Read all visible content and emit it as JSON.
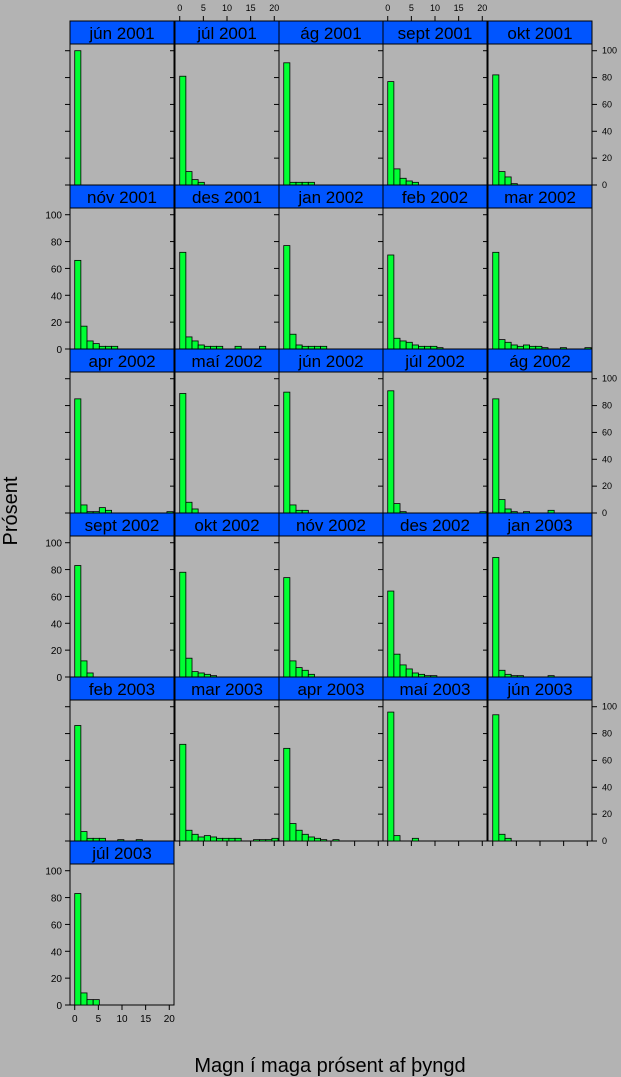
{
  "chart_data": {
    "type": "bar",
    "chart_kind": "trellis-histogram",
    "xlabel": "Magn í maga prósent af þyngd",
    "ylabel": "Prósent",
    "xlim": [
      -1,
      21
    ],
    "ylim": [
      0,
      105
    ],
    "x_ticks": [
      0,
      5,
      10,
      15,
      20
    ],
    "y_ticks": [
      0,
      20,
      40,
      60,
      80,
      100
    ],
    "bin_width": 1.3,
    "bin_starts": [
      0,
      1.3,
      2.6,
      3.9,
      5.2,
      6.5,
      7.8,
      9.1,
      10.4,
      11.7,
      13.0,
      14.3,
      15.6,
      16.9,
      18.2,
      19.5
    ],
    "colors": {
      "bar": "#00ff33",
      "strip": "#0055ff",
      "background": "#b3b3b3"
    },
    "panels": [
      {
        "label": "jún 2001",
        "values": [
          100,
          0,
          0,
          0,
          0,
          0,
          0,
          0,
          0,
          0,
          0,
          0,
          0,
          0,
          0,
          0
        ]
      },
      {
        "label": "júl 2001",
        "values": [
          81,
          10,
          4,
          2,
          0,
          0,
          0,
          0,
          0,
          0,
          0,
          0,
          0,
          0,
          0,
          0
        ]
      },
      {
        "label": "ág 2001",
        "values": [
          91,
          2,
          2,
          2,
          2,
          0,
          0,
          0,
          0,
          0,
          0,
          0,
          0,
          0,
          0,
          0
        ]
      },
      {
        "label": "sept 2001",
        "values": [
          77,
          12,
          5,
          3,
          2,
          0,
          0,
          0,
          0,
          0,
          0,
          0,
          0,
          0,
          0,
          0
        ]
      },
      {
        "label": "okt 2001",
        "values": [
          82,
          10,
          6,
          1,
          0,
          0,
          0,
          0,
          0,
          0,
          0,
          0,
          0,
          0,
          0,
          0
        ]
      },
      {
        "label": "nóv 2001",
        "values": [
          66,
          17,
          6,
          4,
          2,
          2,
          2,
          0,
          0,
          0,
          0,
          0,
          0,
          0,
          0,
          0
        ]
      },
      {
        "label": "des 2001",
        "values": [
          72,
          9,
          6,
          3,
          2,
          2,
          2,
          0,
          0,
          2,
          0,
          0,
          0,
          2,
          0,
          0
        ]
      },
      {
        "label": "jan 2002",
        "values": [
          77,
          11,
          3,
          2,
          2,
          2,
          2,
          0,
          0,
          0,
          0,
          0,
          0,
          0,
          0,
          0
        ]
      },
      {
        "label": "feb 2002",
        "values": [
          70,
          8,
          6,
          5,
          3,
          2,
          2,
          2,
          1,
          0,
          0,
          0,
          0,
          0,
          0,
          0
        ]
      },
      {
        "label": "mar 2002",
        "values": [
          72,
          7,
          5,
          3,
          2,
          3,
          2,
          2,
          1,
          0,
          0,
          1,
          0,
          0,
          0,
          1
        ]
      },
      {
        "label": "apr 2002",
        "values": [
          85,
          6,
          1,
          1,
          4,
          2,
          0,
          0,
          0,
          0,
          0,
          0,
          0,
          0,
          0,
          1
        ]
      },
      {
        "label": "maí 2002",
        "values": [
          89,
          8,
          3,
          0,
          0,
          0,
          0,
          0,
          0,
          0,
          0,
          0,
          0,
          0,
          0,
          0
        ]
      },
      {
        "label": "jún 2002",
        "values": [
          90,
          6,
          2,
          2,
          0,
          0,
          0,
          0,
          0,
          0,
          0,
          0,
          0,
          0,
          0,
          0
        ]
      },
      {
        "label": "júl 2002",
        "values": [
          91,
          7,
          1,
          0,
          0,
          0,
          0,
          0,
          0,
          0,
          0,
          0,
          0,
          0,
          0,
          1
        ]
      },
      {
        "label": "ág 2002",
        "values": [
          85,
          10,
          3,
          1,
          0,
          1,
          0,
          0,
          0,
          2,
          0,
          0,
          0,
          0,
          0,
          0
        ]
      },
      {
        "label": "sept 2002",
        "values": [
          83,
          12,
          3,
          0,
          0,
          0,
          0,
          0,
          0,
          0,
          0,
          0,
          0,
          0,
          0,
          0
        ]
      },
      {
        "label": "okt 2002",
        "values": [
          78,
          14,
          4,
          3,
          2,
          1,
          0,
          0,
          0,
          0,
          0,
          0,
          0,
          0,
          0,
          0
        ]
      },
      {
        "label": "nóv 2002",
        "values": [
          74,
          12,
          7,
          5,
          2,
          0,
          0,
          0,
          0,
          0,
          0,
          0,
          0,
          0,
          0,
          0
        ]
      },
      {
        "label": "des 2002",
        "values": [
          64,
          17,
          9,
          6,
          3,
          2,
          1,
          1,
          0,
          0,
          0,
          0,
          0,
          0,
          0,
          0
        ]
      },
      {
        "label": "jan 2003",
        "values": [
          89,
          5,
          2,
          1,
          1,
          0,
          0,
          0,
          0,
          1,
          0,
          0,
          0,
          0,
          0,
          0
        ]
      },
      {
        "label": "feb 2003",
        "values": [
          86,
          7,
          2,
          2,
          2,
          0,
          0,
          1,
          0,
          0,
          1,
          0,
          0,
          0,
          0,
          0
        ]
      },
      {
        "label": "mar 2003",
        "values": [
          72,
          8,
          5,
          3,
          4,
          3,
          2,
          2,
          2,
          2,
          0,
          0,
          1,
          1,
          1,
          2
        ]
      },
      {
        "label": "apr 2003",
        "values": [
          69,
          13,
          8,
          5,
          3,
          2,
          1,
          0,
          1,
          0,
          0,
          0,
          0,
          0,
          0,
          0
        ]
      },
      {
        "label": "maí 2003",
        "values": [
          96,
          4,
          0,
          0,
          2,
          0,
          0,
          0,
          0,
          0,
          0,
          0,
          0,
          0,
          0,
          0
        ]
      },
      {
        "label": "jún 2003",
        "values": [
          94,
          5,
          2,
          0,
          0,
          0,
          0,
          0,
          0,
          0,
          0,
          0,
          0,
          0,
          0,
          0
        ]
      },
      {
        "label": "júl 2003",
        "values": [
          83,
          9,
          4,
          4,
          0,
          0,
          0,
          0,
          0,
          0,
          0,
          0,
          0,
          0,
          0,
          0
        ]
      }
    ]
  }
}
